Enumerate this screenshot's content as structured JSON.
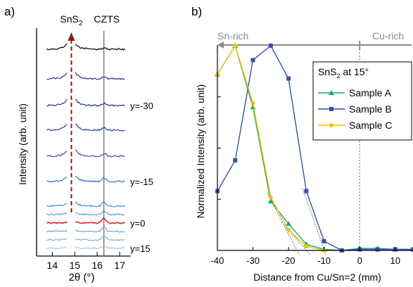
{
  "chart_data": [
    {
      "panel_label": "a)",
      "type": "line",
      "xlabel": "2θ (°)",
      "ylabel": "Intensity (arb. unit)",
      "xlim": [
        13.3,
        17.5
      ],
      "x_ticks": [
        "14",
        "15",
        "16",
        "17"
      ],
      "peak_labels": [
        {
          "text": "SnS",
          "sub": "2",
          "x": 14.85
        },
        {
          "text": "CZTS",
          "x": 16.3
        }
      ],
      "reference_lines": [
        {
          "x": 14.85,
          "style": "dashed-arrow",
          "color": "#8b1a1a"
        },
        {
          "x": 16.3,
          "style": "solid",
          "color": "#444444"
        }
      ],
      "traces": [
        {
          "label": "",
          "color": "#000000"
        },
        {
          "label": "",
          "color": "#2a2e8c"
        },
        {
          "label": "y=-30",
          "color": "#2a2e8c"
        },
        {
          "label": "",
          "color": "#333a9a"
        },
        {
          "label": "",
          "color": "#3552a8"
        },
        {
          "label": "y=-15",
          "color": "#3a72bd"
        },
        {
          "label": "",
          "color": "#4a88cc"
        },
        {
          "label": "",
          "color": "#5a98d6"
        },
        {
          "label": "y=0",
          "color": "#e02a1a"
        },
        {
          "label": "",
          "color": "#6aa8dd"
        },
        {
          "label": "",
          "color": "#7cb4e2"
        },
        {
          "label": "y=15",
          "color": "#a0c8ec"
        }
      ]
    },
    {
      "panel_label": "b)",
      "type": "line",
      "xlabel": "Distance from Cu/Sn=2 (mm)",
      "ylabel": "Normalized Intensity (arb. unit)",
      "xlim": [
        -40,
        15
      ],
      "ylim": [
        0,
        1
      ],
      "x_ticks": [
        "-40",
        "-30",
        "-20",
        "-10",
        "0",
        "10"
      ],
      "top_annotation": {
        "left": "Sn-rich",
        "right": "Cu-rich",
        "color": "#8a8a8a"
      },
      "legend_title": "SnS",
      "legend_title_sub": "2",
      "legend_title_suffix": " at 15°",
      "legend_position": "top-right",
      "vertical_line": {
        "x": 0,
        "style": "dotted"
      },
      "series": [
        {
          "name": "Sample A",
          "color": "#1aaa78",
          "marker": "triangle",
          "x": [
            -40,
            -35,
            -30,
            -25,
            -20,
            -15,
            -10,
            -5,
            0,
            5,
            10,
            15
          ],
          "y": [
            0.86,
            1.0,
            0.7,
            0.24,
            0.13,
            0.03,
            0.005,
            0.0,
            0.01,
            0.01,
            0.005,
            0.005
          ]
        },
        {
          "name": "Sample B",
          "color": "#3a4fa6",
          "marker": "square",
          "x": [
            -40,
            -35,
            -30,
            -25,
            -20,
            -15,
            -10,
            -5,
            0,
            5,
            10,
            15
          ],
          "y": [
            0.29,
            0.44,
            0.93,
            1.0,
            0.84,
            0.29,
            0.045,
            0.0,
            0.005,
            0.005,
            0.005,
            0.005
          ]
        },
        {
          "name": "Sample C",
          "color": "#f0c400",
          "marker": "circle",
          "x": [
            -40,
            -35,
            -30,
            -25,
            -20,
            -15,
            -10
          ],
          "y": [
            0.86,
            1.0,
            0.72,
            0.26,
            0.1,
            0.02,
            0.0
          ]
        }
      ]
    }
  ]
}
